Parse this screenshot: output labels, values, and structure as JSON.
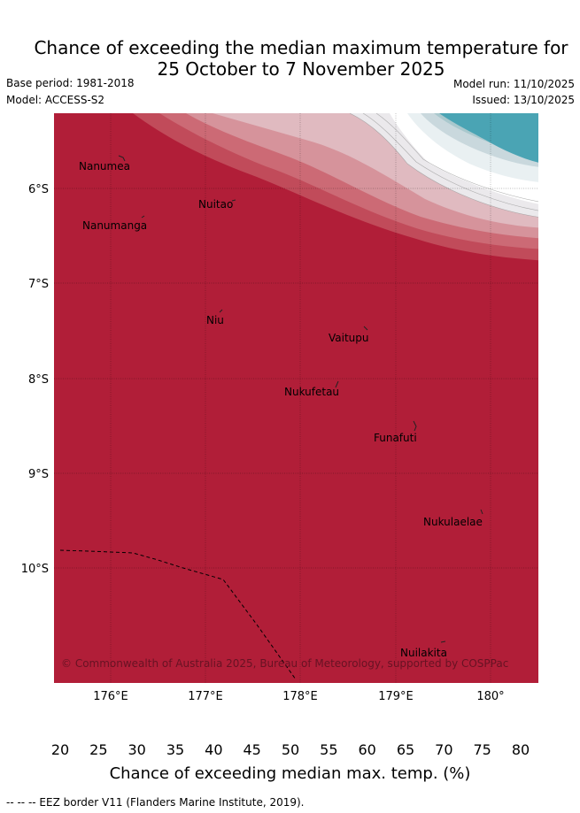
{
  "title": {
    "line1": "Chance of exceeding the median maximum temperature for",
    "line2": "25 October to 7 November 2025"
  },
  "meta": {
    "base_period": "Base period: 1981-2018",
    "model": "Model: ACCESS-S2",
    "model_run": "Model run: 11/10/2025",
    "issued": "Issued: 13/10/2025"
  },
  "map": {
    "lat_labels": [
      "6°S",
      "7°S",
      "8°S",
      "9°S",
      "10°S"
    ],
    "lon_labels": [
      "176°E",
      "177°E",
      "178°E",
      "179°E",
      "180°"
    ],
    "places": [
      "Nanumea",
      "Nuitao",
      "Nanumanga",
      "Niu",
      "Vaitupu",
      "Nukufetau",
      "Funafuti",
      "Nukulaelae",
      "Nuilakita"
    ],
    "copyright": "© Commonwealth of Australia 2025, Bureau of Meteorology, supported by COSPPac"
  },
  "colorbar": {
    "ticks": [
      "20",
      "25",
      "30",
      "35",
      "40",
      "45",
      "50",
      "55",
      "60",
      "65",
      "70",
      "75",
      "80"
    ],
    "colors": [
      "#6cafbb",
      "#8cbac6",
      "#a9c8cd",
      "#c9d8dd",
      "#e9f0f2",
      "#ffffff",
      "#ffffff",
      "#ebe9ec",
      "#e0bac0",
      "#d6939b",
      "#cc6a75",
      "#c14b5a"
    ],
    "under_color": "#4aa4b4",
    "over_color": "#b11e38",
    "title": "Chance of exceeding median max. temp. (%)"
  },
  "footer": "--  --  -- EEZ border V11 (Flanders Marine Institute, 2019)."
}
